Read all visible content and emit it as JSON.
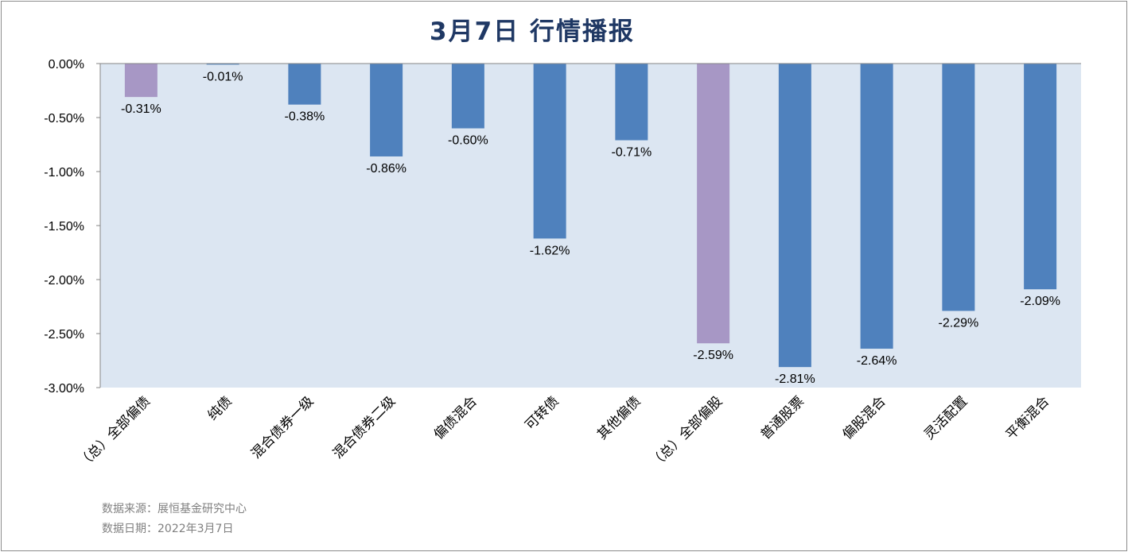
{
  "header": {
    "title": "3月7日  行情播报"
  },
  "chart_data": {
    "type": "bar",
    "title": "3月7日  行情播报",
    "categories": [
      "（总）全部偏债",
      "纯债",
      "混合债券一级",
      "混合债券二级",
      "偏债混合",
      "可转债",
      "其他偏债",
      "（总）全部偏股",
      "普通股票",
      "偏股混合",
      "灵活配置",
      "平衡混合"
    ],
    "values": [
      -0.31,
      -0.01,
      -0.38,
      -0.86,
      -0.6,
      -1.62,
      -0.71,
      -2.59,
      -2.81,
      -2.64,
      -2.29,
      -2.09
    ],
    "value_labels": [
      "-0.31%",
      "-0.01%",
      "-0.38%",
      "-0.86%",
      "-0.60%",
      "-1.62%",
      "-0.71%",
      "-2.59%",
      "-2.81%",
      "-2.64%",
      "-2.29%",
      "-2.09%"
    ],
    "highlight": [
      true,
      false,
      false,
      false,
      false,
      false,
      false,
      true,
      false,
      false,
      false,
      false
    ],
    "ylim": [
      -3.0,
      0.0
    ],
    "yticks": [
      0.0,
      -0.5,
      -1.0,
      -1.5,
      -2.0,
      -2.5,
      -3.0
    ],
    "ytick_labels": [
      "0.00%",
      "-0.50%",
      "-1.00%",
      "-1.50%",
      "-2.00%",
      "-2.50%",
      "-3.00%"
    ],
    "xlabel": "",
    "ylabel": "",
    "grid": false,
    "colors": {
      "bar": "#4f81bd",
      "highlight_bar": "#a797c5",
      "plot_bg": "#dce6f2",
      "axis": "#868686",
      "text": "#000000"
    }
  },
  "footer": {
    "source": "数据来源：展恒基金研究中心",
    "date": "数据日期：2022年3月7日"
  }
}
